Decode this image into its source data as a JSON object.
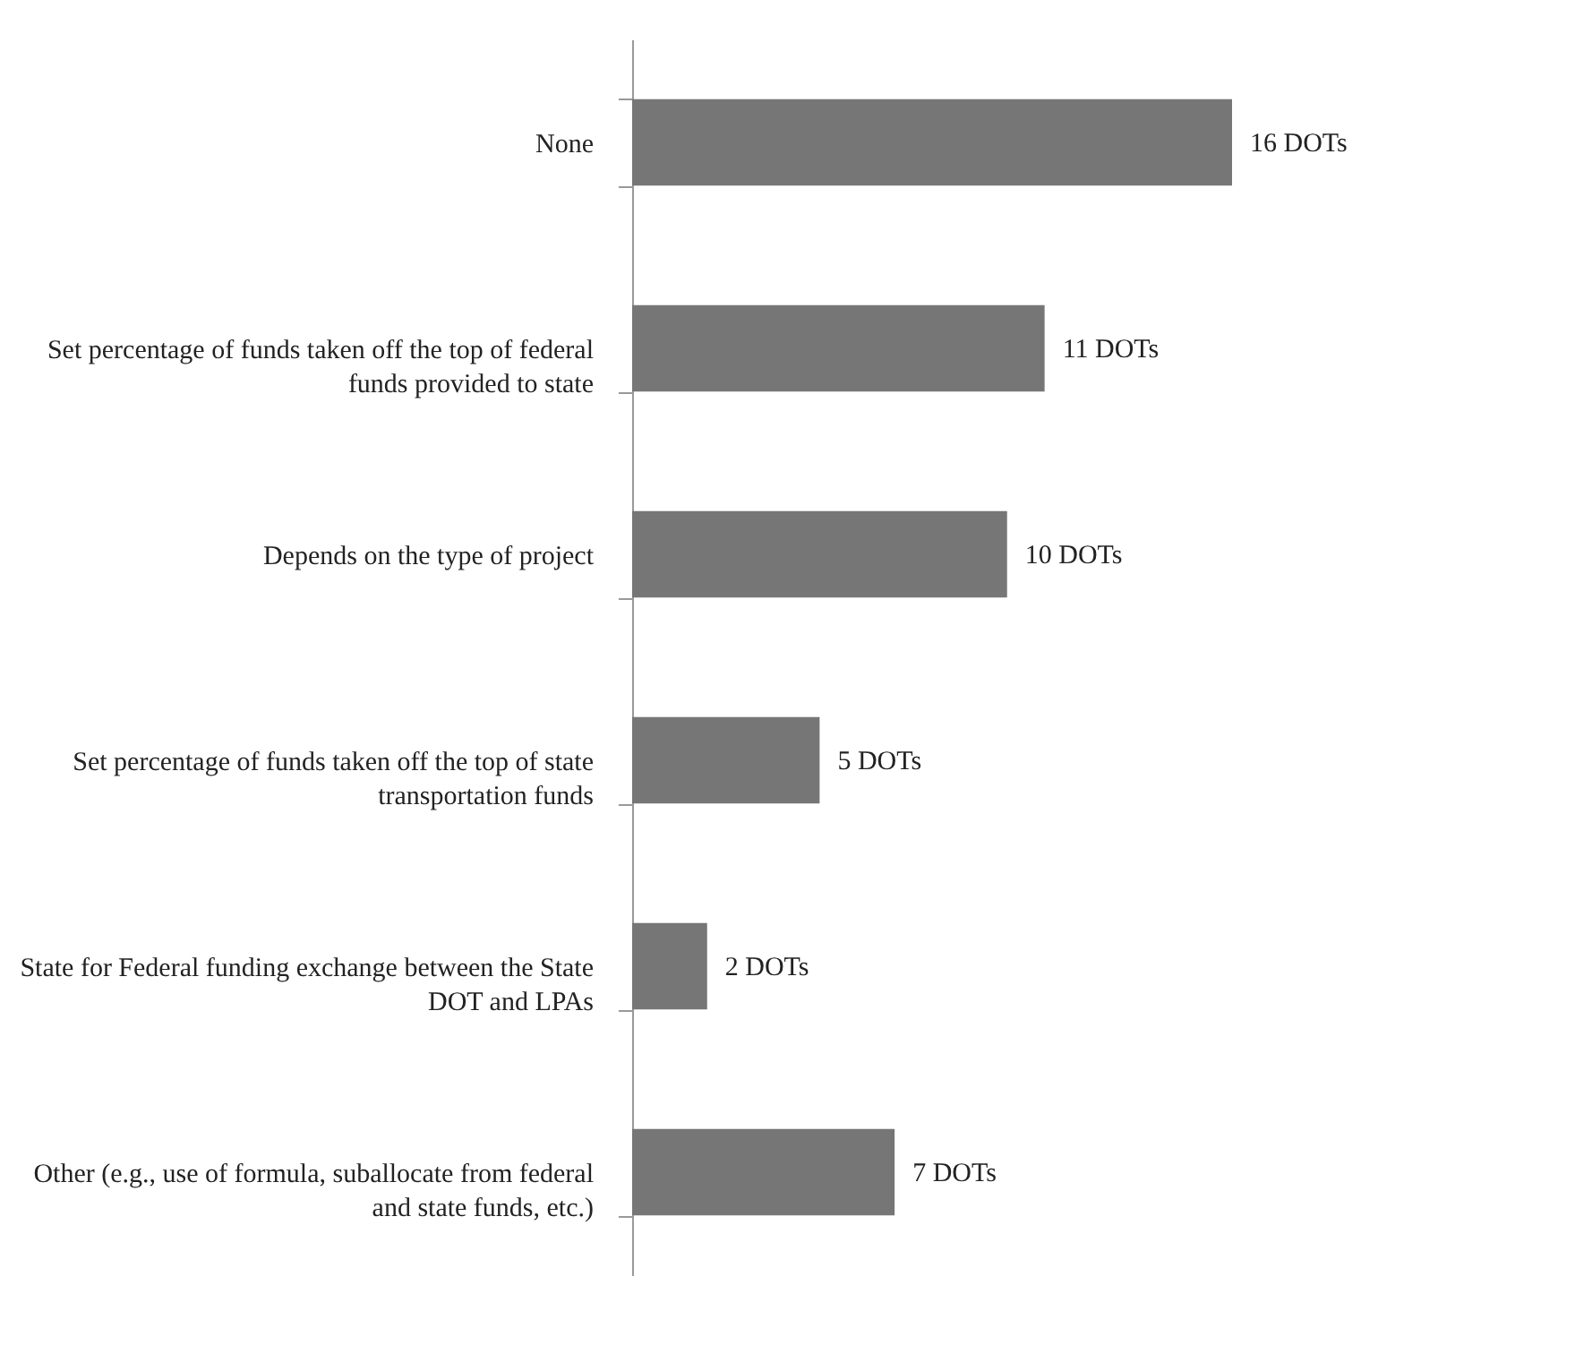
{
  "chart_data": {
    "type": "bar",
    "orientation": "horizontal",
    "categories": [
      "None",
      "Set percentage of funds taken off the top of federal funds provided to state",
      "Depends on the type of project",
      "Set percentage of funds taken off the top of state transportation funds",
      "State for Federal funding exchange between the State DOT and LPAs",
      "Other (e.g., use of formula, suballocate from federal and state funds, etc.)"
    ],
    "values": [
      16,
      11,
      10,
      5,
      2,
      7
    ],
    "value_labels": [
      "16 DOTs",
      "11 DOTs",
      "10 DOTs",
      "5 DOTs",
      "2 DOTs",
      "7 DOTs"
    ],
    "color": "#767676"
  }
}
